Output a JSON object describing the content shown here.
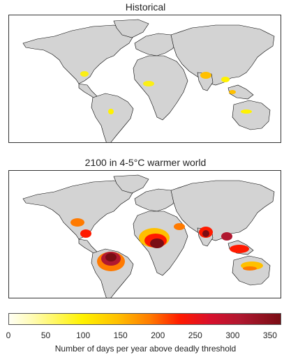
{
  "panels": [
    {
      "title": "Historical"
    },
    {
      "title": "2100 in 4-5°C warmer world"
    }
  ],
  "colorbar": {
    "ticks": [
      "0",
      "50",
      "100",
      "150",
      "200",
      "250",
      "300",
      "350"
    ],
    "tick_values": [
      0,
      50,
      100,
      150,
      200,
      250,
      300,
      350
    ],
    "range": [
      0,
      365
    ],
    "label": "Number of days per year above deadly threshold",
    "colors": [
      "#fffff5",
      "#fff200",
      "#ff7a00",
      "#ff1a00",
      "#b01830",
      "#7a0d14"
    ]
  },
  "legend_colors": {
    "land_no_data": "#d3d3d3",
    "coastline": "#000000"
  }
}
